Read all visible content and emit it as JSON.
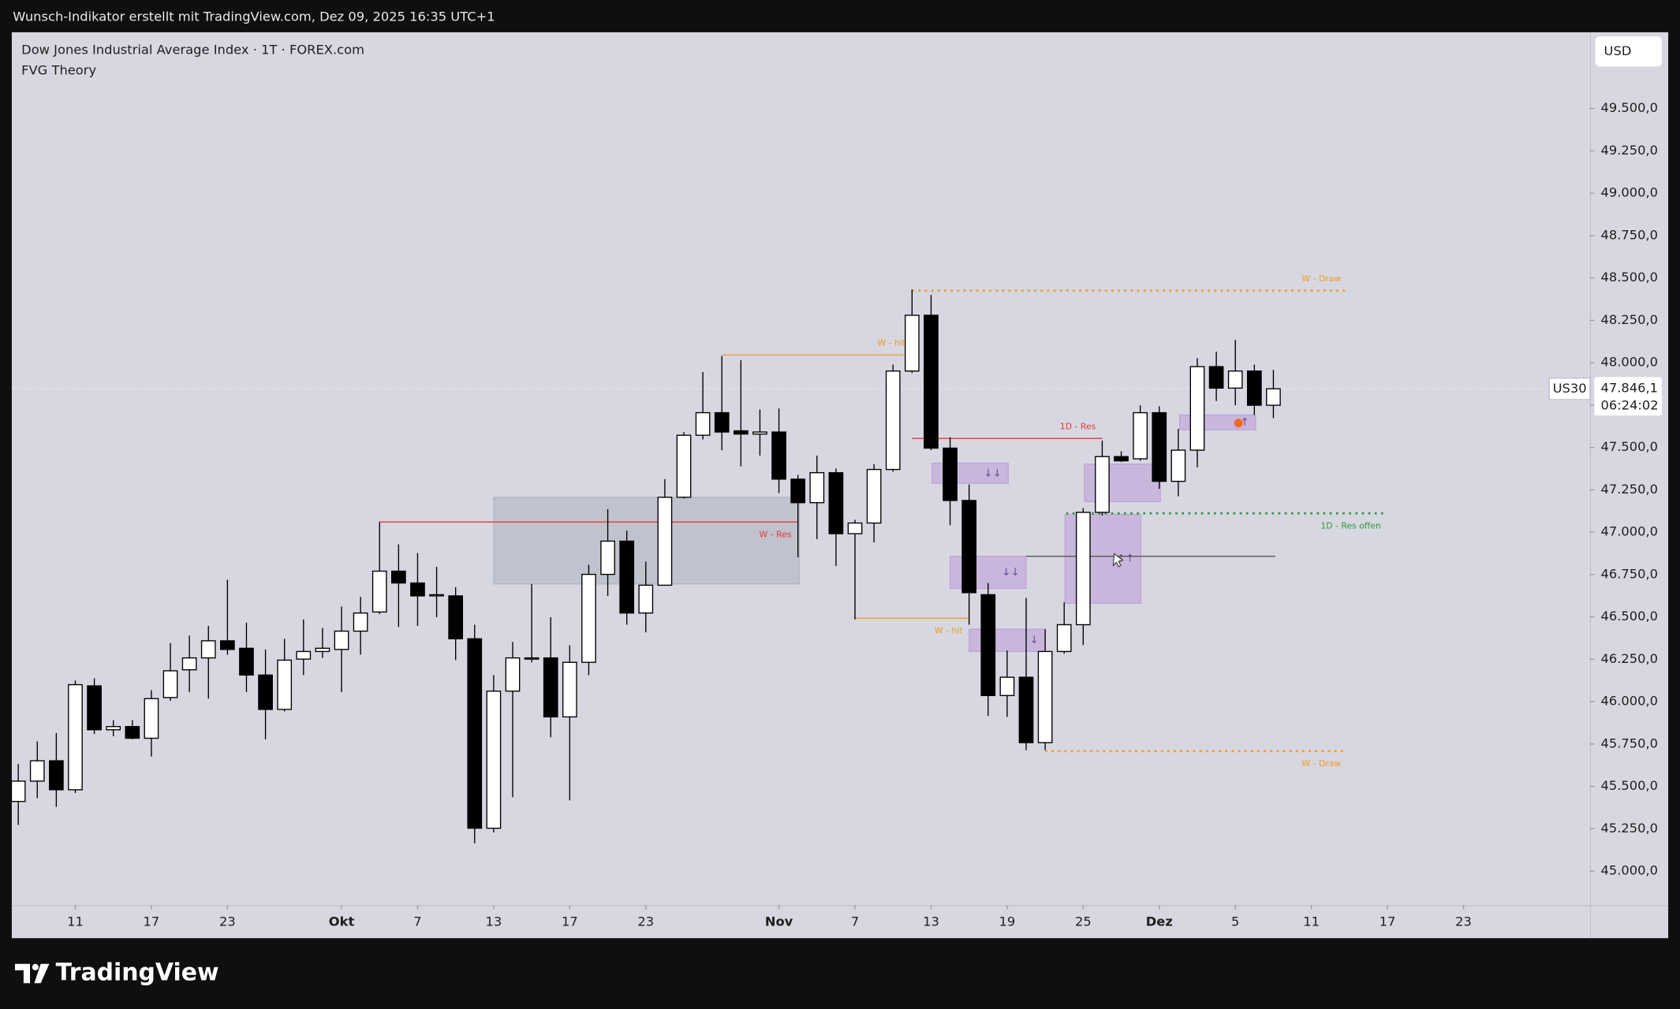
{
  "header": "Wunsch-Indikator erstellt mit TradingView.com, Dez 09, 2025 16:35 UTC+1",
  "brand": "TradingView",
  "chart_data": {
    "type": "candlestick",
    "title": "Dow Jones Industrial Average Index · 1T · FOREX.com",
    "indicator": "FVG Theory",
    "currency": "USD",
    "symbol": "US30",
    "countdown": "06:24:02",
    "up_color": "#ffffff",
    "down_color": "#000000",
    "open": [
      45411,
      45531,
      45651,
      45480,
      46093,
      45834,
      45853,
      45784,
      46024,
      46188,
      46258,
      46359,
      46315,
      46157,
      45954,
      46251,
      46296,
      46308,
      46416,
      46529,
      46770,
      46700,
      46624,
      46624,
      46371,
      45253,
      46062,
      46251,
      46258,
      45910,
      46232,
      46751,
      46947,
      46523,
      46687,
      47206,
      47572,
      47705,
      47598,
      47579,
      47591,
      47313,
      47174,
      47351,
      46991,
      47054,
      47370,
      47951,
      48280,
      47496,
      47187,
      46631,
      46036,
      46144,
      45758,
      46296,
      46454,
      47117,
      47446,
      47433,
      47705,
      47300,
      47484,
      47977,
      47850,
      47951,
      47749
    ],
    "high": [
      45632,
      45765,
      45815,
      46125,
      46138,
      45891,
      45891,
      46068,
      46346,
      46390,
      46447,
      46719,
      46466,
      46308,
      46371,
      46485,
      46435,
      46561,
      46618,
      47060,
      46928,
      46877,
      46795,
      46675,
      46454,
      46157,
      46352,
      46694,
      46498,
      46333,
      46808,
      47136,
      47010,
      46826,
      47313,
      47591,
      47945,
      48040,
      48015,
      47724,
      47730,
      47338,
      47452,
      47376,
      47073,
      47402,
      47989,
      48432,
      48400,
      47560,
      47282,
      46700,
      46302,
      46612,
      46428,
      46586,
      47142,
      47541,
      47477,
      47749,
      47743,
      47610,
      48027,
      48065,
      48135,
      47989,
      47958
    ],
    "low": [
      45272,
      45430,
      45379,
      45461,
      45809,
      45796,
      45777,
      45676,
      46005,
      46056,
      46018,
      46277,
      46056,
      45777,
      45942,
      46157,
      46258,
      46056,
      46277,
      46517,
      46441,
      46447,
      46498,
      46245,
      45164,
      45228,
      45436,
      46232,
      45790,
      45417,
      46157,
      46624,
      46454,
      46409,
      46687,
      47199,
      47547,
      47484,
      47389,
      47452,
      47231,
      46852,
      46959,
      46801,
      46485,
      46940,
      47357,
      47939,
      47484,
      47041,
      46454,
      45916,
      45910,
      45714,
      45714,
      46283,
      46334,
      47098,
      47414,
      47421,
      47256,
      47212,
      47383,
      47774,
      47749,
      47692,
      47673
    ],
    "close": [
      45531,
      45651,
      45480,
      46100,
      45834,
      45853,
      45784,
      46018,
      46182,
      46258,
      46359,
      46308,
      46157,
      45954,
      46245,
      46296,
      46315,
      46416,
      46523,
      46770,
      46700,
      46624,
      46631,
      46371,
      45253,
      46062,
      46258,
      46258,
      45910,
      46232,
      46751,
      46947,
      46523,
      46687,
      47206,
      47572,
      47705,
      47591,
      47579,
      47591,
      47313,
      47174,
      47351,
      46991,
      47054,
      47370,
      47951,
      48280,
      47496,
      47187,
      46643,
      46036,
      46144,
      45758,
      46296,
      46454,
      47117,
      47446,
      47421,
      47705,
      47300,
      47484,
      47977,
      47850,
      47951,
      47749,
      47846.1
    ],
    "last_price": {
      "value": 47846.1,
      "label": "47.846,1"
    },
    "xlim": [
      -0.34,
      82.65
    ],
    "xticks": [
      {
        "value": 3,
        "label": "11"
      },
      {
        "value": 7,
        "label": "17"
      },
      {
        "value": 11,
        "label": "23"
      },
      {
        "value": 17,
        "label": "Okt"
      },
      {
        "value": 21,
        "label": "7"
      },
      {
        "value": 25,
        "label": "13"
      },
      {
        "value": 29,
        "label": "17"
      },
      {
        "value": 33,
        "label": "23"
      },
      {
        "value": 40,
        "label": "Nov"
      },
      {
        "value": 44,
        "label": "7"
      },
      {
        "value": 48,
        "label": "13"
      },
      {
        "value": 52,
        "label": "19"
      },
      {
        "value": 56,
        "label": "25"
      },
      {
        "value": 60,
        "label": "Dez"
      },
      {
        "value": 64,
        "label": "5"
      },
      {
        "value": 68,
        "label": "11"
      },
      {
        "value": 72,
        "label": "17"
      },
      {
        "value": 76,
        "label": "23"
      }
    ],
    "ylim": [
      44800,
      49950
    ],
    "yticks": [
      {
        "value": 45000,
        "label": "45.000,0"
      },
      {
        "value": 45250,
        "label": "45.250,0"
      },
      {
        "value": 45500,
        "label": "45.500,0"
      },
      {
        "value": 45750,
        "label": "45.750,0"
      },
      {
        "value": 46000,
        "label": "46.000,0"
      },
      {
        "value": 46250,
        "label": "46.250,0"
      },
      {
        "value": 46500,
        "label": "46.500,0"
      },
      {
        "value": 46750,
        "label": "46.750,0"
      },
      {
        "value": 47000,
        "label": "47.000,0"
      },
      {
        "value": 47250,
        "label": "47.250,0"
      },
      {
        "value": 47500,
        "label": "47.500,0"
      },
      {
        "value": 47750,
        "label": "47.750,0"
      },
      {
        "value": 48000,
        "label": "48.000,0"
      },
      {
        "value": 48250,
        "label": "48.250,0"
      },
      {
        "value": 48500,
        "label": "48.500,0"
      },
      {
        "value": 48750,
        "label": "48.750,0"
      },
      {
        "value": 49000,
        "label": "49.000,0"
      },
      {
        "value": 49250,
        "label": "49.250,0"
      },
      {
        "value": 49500,
        "label": "49.500,0"
      }
    ],
    "zones": [
      {
        "top": 47206,
        "bottom": 46694,
        "start": 25,
        "end": 41.07,
        "color": "#a4a8b6"
      },
      {
        "top": 47408,
        "bottom": 47288,
        "start": 48.05,
        "end": 52.06,
        "color": "#b88fd6",
        "marker": "↓↓"
      },
      {
        "top": 46858,
        "bottom": 46668,
        "start": 49,
        "end": 53,
        "color": "#b88fd6",
        "marker": "↓↓"
      },
      {
        "top": 46428,
        "bottom": 46296,
        "start": 50,
        "end": 54,
        "color": "#b88fd6",
        "marker": "↓"
      },
      {
        "top": 47105,
        "bottom": 46580,
        "start": 55.04,
        "end": 59.04,
        "color": "#b88fd6",
        "marker": "↑↑"
      },
      {
        "top": 47402,
        "bottom": 47180,
        "start": 56.06,
        "end": 60.06,
        "color": "#b88fd6"
      },
      {
        "top": 47692,
        "bottom": 47604,
        "start": 61.07,
        "end": 65.07,
        "color": "#b88fd6",
        "marker": "↑"
      }
    ],
    "levels": [
      {
        "price": 47060,
        "start": 19,
        "end": 41,
        "color": "#e53935",
        "style": "solid",
        "label": "W - Res",
        "label_side": "below"
      },
      {
        "price": 48046,
        "start": 37,
        "end": 47,
        "color": "#f59b23",
        "style": "solid",
        "label": "W - hit",
        "label_side": "above"
      },
      {
        "price": 48425,
        "start": 47,
        "end": 69.9,
        "color": "#f59b23",
        "style": "dotted",
        "label": "W - Draw",
        "label_side": "above"
      },
      {
        "price": 47553,
        "start": 47,
        "end": 57,
        "color": "#e53935",
        "style": "solid",
        "label": "1D - Res",
        "label_side": "above"
      },
      {
        "price": 46492,
        "start": 44,
        "end": 50,
        "color": "#f59b23",
        "style": "solid",
        "label": "W - hit",
        "label_side": "below"
      },
      {
        "price": 45708,
        "start": 54,
        "end": 69.9,
        "color": "#f59b23",
        "style": "dotted",
        "label": "W - Draw",
        "label_side": "below"
      },
      {
        "price": 47111,
        "start": 55.1,
        "end": 72,
        "color": "#2e9a3a",
        "style": "dotted",
        "label": "1D - Res offen",
        "label_side": "below"
      },
      {
        "price": 46858,
        "start": 53,
        "end": 66.1,
        "color": "#555555",
        "style": "solid"
      }
    ]
  }
}
